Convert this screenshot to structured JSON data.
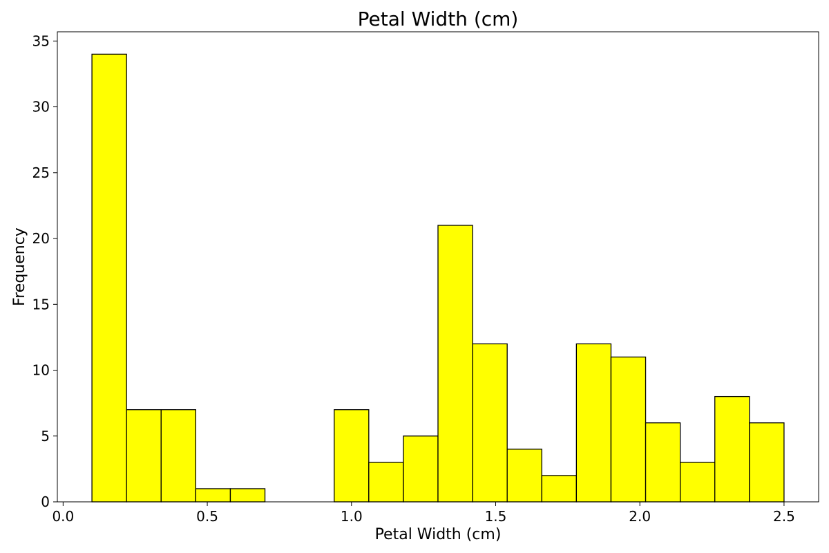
{
  "chart_data": {
    "type": "bar",
    "title": "Petal Width (cm)",
    "xlabel": "Petal Width (cm)",
    "ylabel": "Frequency",
    "bin_edges": [
      0.1,
      0.22,
      0.34,
      0.46,
      0.58,
      0.7,
      0.82,
      0.94,
      1.06,
      1.18,
      1.3,
      1.42,
      1.54,
      1.66,
      1.78,
      1.9,
      2.02,
      2.14,
      2.26,
      2.38,
      2.5
    ],
    "values": [
      34,
      7,
      7,
      1,
      1,
      0,
      0,
      7,
      3,
      5,
      21,
      12,
      4,
      2,
      12,
      11,
      6,
      3,
      8,
      6
    ],
    "xlim": [
      -0.02,
      2.62
    ],
    "ylim": [
      0,
      35.7
    ],
    "xticks": [
      0.0,
      0.5,
      1.0,
      1.5,
      2.0,
      2.5
    ],
    "xtick_labels": [
      "0.0",
      "0.5",
      "1.0",
      "1.5",
      "2.0",
      "2.5"
    ],
    "yticks": [
      0,
      5,
      10,
      15,
      20,
      25,
      30,
      35
    ],
    "ytick_labels": [
      "0",
      "5",
      "10",
      "15",
      "20",
      "25",
      "30",
      "35"
    ],
    "bar_color": "#ffff00",
    "edge_color": "#000000",
    "grid": false,
    "legend": "none"
  }
}
